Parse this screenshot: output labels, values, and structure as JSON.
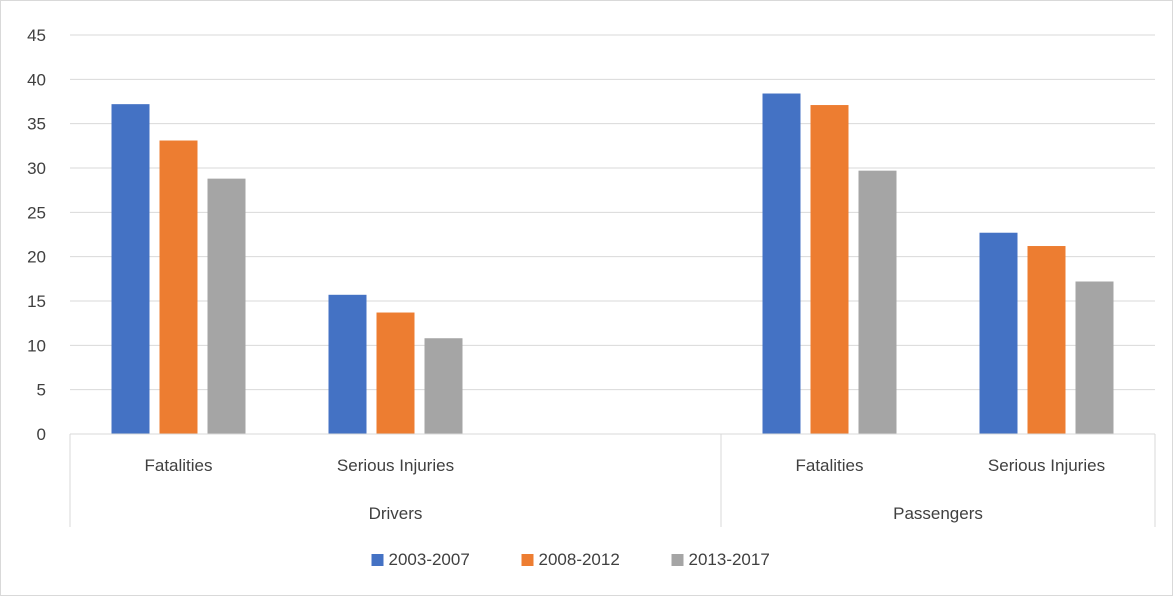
{
  "chart_data": {
    "type": "bar",
    "groups": [
      {
        "label": "Drivers",
        "categories": [
          "Fatalities",
          "Serious Injuries"
        ]
      },
      {
        "label": "Passengers",
        "categories": [
          "Fatalities",
          "Serious Injuries"
        ]
      }
    ],
    "series": [
      {
        "name": "2003-2007",
        "color": "#4472C4",
        "values": [
          37.2,
          15.7,
          38.4,
          22.7
        ]
      },
      {
        "name": "2008-2012",
        "color": "#ED7D31",
        "values": [
          33.1,
          13.7,
          37.1,
          21.2
        ]
      },
      {
        "name": "2013-2017",
        "color": "#A5A5A5",
        "values": [
          28.8,
          10.8,
          29.7,
          17.2
        ]
      }
    ],
    "ylim": [
      0,
      45
    ],
    "yticks": [
      "0",
      "5",
      "10",
      "15",
      "20",
      "25",
      "30",
      "35",
      "40",
      "45"
    ],
    "grid": true,
    "legend_position": "bottom",
    "title": "",
    "xlabel": "",
    "ylabel": ""
  }
}
